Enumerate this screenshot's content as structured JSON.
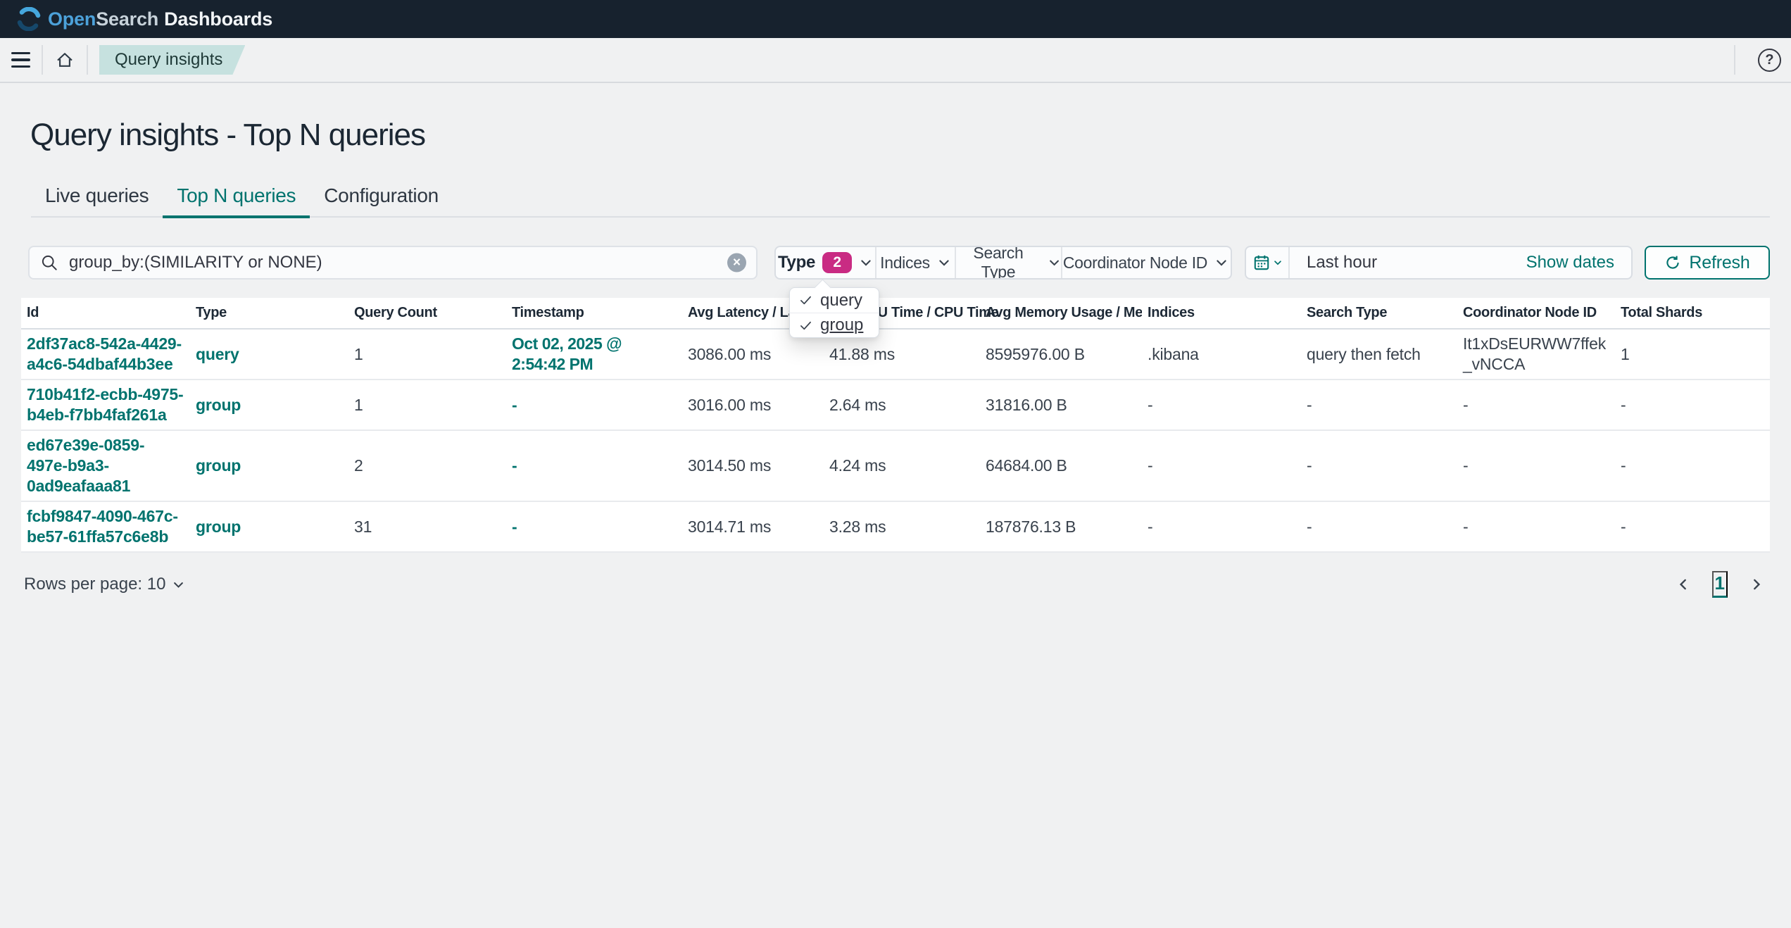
{
  "header": {
    "logo": {
      "open": "Open",
      "search": "Search",
      "dashboards": "Dashboards"
    }
  },
  "breadcrumb": {
    "label": "Query insights"
  },
  "icons": {
    "help": "?",
    "clear": "×"
  },
  "page": {
    "title": "Query insights - Top N queries"
  },
  "tabs": [
    {
      "label": "Live queries",
      "active": false
    },
    {
      "label": "Top N queries",
      "active": true
    },
    {
      "label": "Configuration",
      "active": false
    }
  ],
  "controls": {
    "search": {
      "value": "group_by:(SIMILARITY or NONE)"
    },
    "filters": {
      "type": {
        "label": "Type",
        "badge": "2"
      },
      "indices": "Indices",
      "search_type": "Search Type",
      "coordinator": "Coordinator Node ID"
    },
    "datepicker": {
      "value": "Last hour",
      "show_dates": "Show dates"
    },
    "refresh_label": "Refresh"
  },
  "type_popup": {
    "items": [
      {
        "label": "query",
        "checked": true
      },
      {
        "label": "group",
        "checked": true
      }
    ]
  },
  "table": {
    "columns": [
      "Id",
      "Type",
      "Query Count",
      "Timestamp",
      "Avg Latency / Latency",
      "Avg CPU Time / CPU Time",
      "Avg Memory Usage / Mem…",
      "Indices",
      "Search Type",
      "Coordinator Node ID",
      "Total Shards"
    ],
    "rows": [
      {
        "id": "2df37ac8-542a-4429-a4c6-54dbaf44b3ee",
        "type": "query",
        "query_count": "1",
        "timestamp": "Oct 02, 2025 @ 2:54:42 PM",
        "avg_latency": "3086.00 ms",
        "avg_cpu_time": "41.88 ms",
        "avg_memory": "8595976.00 B",
        "indices": ".kibana",
        "search_type": "query then fetch",
        "coordinator_node_id": "It1xDsEURWW7ffek_vNCCA",
        "total_shards": "1"
      },
      {
        "id": "710b41f2-ecbb-4975-b4eb-f7bb4faf261a",
        "type": "group",
        "query_count": "1",
        "timestamp": "-",
        "avg_latency": "3016.00 ms",
        "avg_cpu_time": "2.64 ms",
        "avg_memory": "31816.00 B",
        "indices": "-",
        "search_type": "-",
        "coordinator_node_id": "-",
        "total_shards": "-"
      },
      {
        "id": "ed67e39e-0859-497e-b9a3-0ad9eafaaa81",
        "type": "group",
        "query_count": "2",
        "timestamp": "-",
        "avg_latency": "3014.50 ms",
        "avg_cpu_time": "4.24 ms",
        "avg_memory": "64684.00 B",
        "indices": "-",
        "search_type": "-",
        "coordinator_node_id": "-",
        "total_shards": "-"
      },
      {
        "id": "fcbf9847-4090-467c-be57-61ffa57c6e8b",
        "type": "group",
        "query_count": "31",
        "timestamp": "-",
        "avg_latency": "3014.71 ms",
        "avg_cpu_time": "3.28 ms",
        "avg_memory": "187876.13 B",
        "indices": "-",
        "search_type": "-",
        "coordinator_node_id": "-",
        "total_shards": "-"
      }
    ]
  },
  "footer": {
    "rows_per_page": "Rows per page: 10",
    "page": "1"
  },
  "colors": {
    "accent_teal": "#00736E",
    "badge_pink": "#C92B83",
    "header_bg": "#17222E"
  }
}
